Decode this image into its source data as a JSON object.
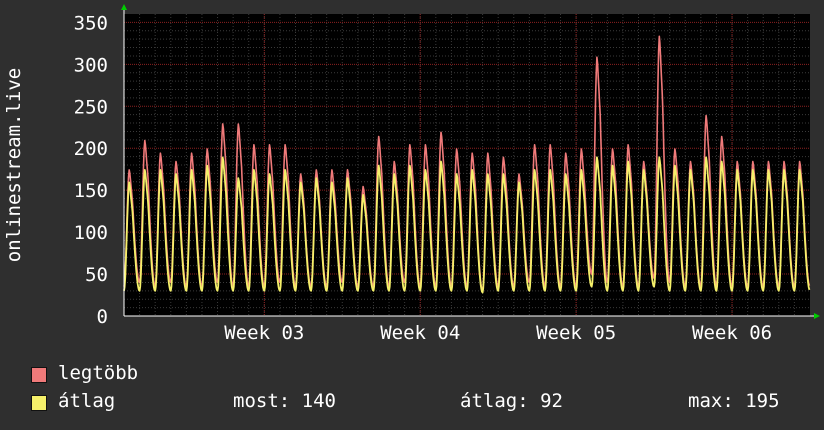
{
  "colors": {
    "background": "#2f2f2f",
    "plot_background": "#000000",
    "grid_minor": "#3a3a3a",
    "grid_major": "#8b2020",
    "axis_text": "#ffffff",
    "axis_arrow": "#00cc00",
    "max_series": "#f07a7a",
    "avg_series": "#f5f06a"
  },
  "chart_data": {
    "type": "line",
    "title": "",
    "ylabel": "onlinestream.live",
    "xlabel": "",
    "ylim": [
      0,
      360
    ],
    "yticks": [
      0,
      50,
      100,
      150,
      200,
      250,
      300,
      350
    ],
    "x_range_days": [
      0,
      44
    ],
    "xticks": [
      {
        "label": "Week 03",
        "day": 9
      },
      {
        "label": "Week 04",
        "day": 19
      },
      {
        "label": "Week 05",
        "day": 29
      },
      {
        "label": "Week 06",
        "day": 39
      }
    ],
    "grid": true,
    "cycles": 44,
    "series": [
      {
        "name": "legtöbb",
        "color": "#f07a7a",
        "daily_peaks": [
          175,
          210,
          195,
          185,
          195,
          200,
          230,
          230,
          205,
          205,
          205,
          170,
          175,
          175,
          175,
          155,
          215,
          185,
          205,
          205,
          220,
          200,
          195,
          195,
          190,
          170,
          205,
          205,
          195,
          200,
          310,
          200,
          205,
          185,
          335,
          200,
          185,
          240,
          215,
          185,
          185,
          185,
          185,
          185
        ],
        "daily_troughs": [
          35,
          40,
          35,
          40,
          35,
          35,
          40,
          35,
          35,
          35,
          40,
          35,
          35,
          35,
          40,
          35,
          35,
          35,
          40,
          35,
          35,
          35,
          35,
          30,
          35,
          35,
          40,
          35,
          35,
          35,
          50,
          40,
          35,
          35,
          45,
          40,
          35,
          35,
          35,
          35,
          35,
          35,
          35,
          35
        ]
      },
      {
        "name": "átlag",
        "color": "#f5f06a",
        "daily_peaks": [
          160,
          175,
          175,
          170,
          175,
          180,
          190,
          165,
          175,
          170,
          175,
          160,
          165,
          160,
          165,
          145,
          180,
          170,
          180,
          175,
          185,
          170,
          175,
          170,
          170,
          160,
          175,
          175,
          170,
          175,
          190,
          180,
          185,
          175,
          190,
          180,
          175,
          190,
          185,
          175,
          175,
          175,
          175,
          175
        ],
        "daily_troughs": [
          30,
          30,
          30,
          30,
          30,
          30,
          30,
          30,
          30,
          30,
          30,
          30,
          30,
          30,
          30,
          30,
          30,
          30,
          30,
          30,
          30,
          30,
          30,
          28,
          30,
          30,
          30,
          30,
          30,
          30,
          35,
          30,
          30,
          30,
          35,
          30,
          30,
          30,
          30,
          30,
          30,
          30,
          30,
          30
        ]
      }
    ]
  },
  "legend": {
    "max_label": "legtöbb",
    "avg_label": "átlag"
  },
  "stats": {
    "current": "most: 140",
    "average": "átlag: 92",
    "maximum": "max: 195"
  }
}
